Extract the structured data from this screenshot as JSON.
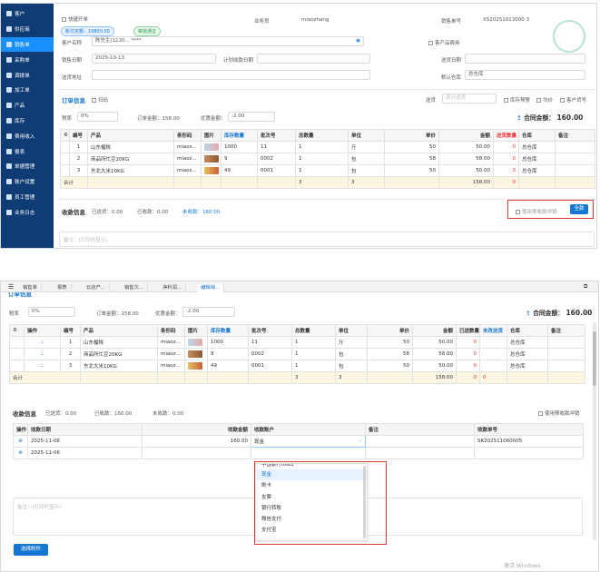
{
  "sidebar": {
    "items": [
      {
        "label": "客户",
        "active": false
      },
      {
        "label": "供应商",
        "active": false
      },
      {
        "label": "销售单",
        "active": true
      },
      {
        "label": "采购单",
        "active": false
      },
      {
        "label": "调拨单",
        "active": false
      },
      {
        "label": "加工单",
        "active": false
      },
      {
        "label": "产品",
        "active": false
      },
      {
        "label": "库存",
        "active": false
      },
      {
        "label": "费用收入",
        "active": false
      },
      {
        "label": "报表",
        "active": false
      },
      {
        "label": "单据管理",
        "active": false
      },
      {
        "label": "账户设置",
        "active": false
      },
      {
        "label": "员工管理",
        "active": false
      },
      {
        "label": "业务日志",
        "active": false
      }
    ]
  },
  "top": {
    "quick_label": "快捷开单",
    "tag_credit": "新付定额：19800.00",
    "tag_status": "审批通过",
    "salesman_label": "业务员",
    "salesman_value": "miaozhang",
    "order_no_label": "销售单号",
    "order_no_value": "XS20251013000 3",
    "customer_label": "客户名称",
    "customer_value": "陈先生(1130...  ****",
    "cust_product_fee": "客产品费用",
    "date_label": "销售日期",
    "date_value": "2025-10-13",
    "plan_date_label": "计划收款日期",
    "delivery_date_label": "送货日期",
    "address_label": "送货地址",
    "warehouse_label": "默认仓库",
    "warehouse_value": "总仓库"
  },
  "order": {
    "section_title": "订单信息",
    "scan_label": "扫码",
    "ship_label": "送货",
    "ship_placeholder": "部分送货",
    "stock_warn": "库存预警",
    "avg_price": "均价",
    "cust_code": "客户货号",
    "tax_label": "税率",
    "tax_value": "0%",
    "amount_label": "订单金额：",
    "amount_value": "158.00",
    "discount_label": "优惠金额：",
    "discount_value": "-2.00",
    "total_label": "合同金额：",
    "total_value": "160.00"
  },
  "table": {
    "headers": [
      "编号",
      "产品",
      "条形码",
      "图片",
      "库存数量",
      "批次号",
      "总数量",
      "单位",
      "单价",
      "金额",
      "送货数量",
      "仓库",
      "备注"
    ],
    "headers2_op": "操作",
    "headers2_sent": "已送数量",
    "headers2_unsent": "未改送货",
    "rows": [
      {
        "no": "1",
        "product": "山东榴桃",
        "barcode": "miaoz...",
        "stock": "1000",
        "batch": "11",
        "qty": "1",
        "unit": "斤",
        "price": "50",
        "amount": "50.00",
        "ship": "0",
        "sent": "0",
        "warehouse": "总仓库"
      },
      {
        "no": "2",
        "product": "商品所忙豆20KG",
        "barcode": "miaoz...",
        "stock": "9",
        "batch": "0002",
        "qty": "1",
        "unit": "包",
        "price": "58",
        "amount": "58.00",
        "ship": "0",
        "sent": "0",
        "warehouse": "总仓库"
      },
      {
        "no": "3",
        "product": "东北大米10KG",
        "barcode": "miaoz...",
        "stock": "49",
        "batch": "0001",
        "qty": "1",
        "unit": "包",
        "price": "50",
        "amount": "50.00",
        "ship": "0",
        "sent": "0",
        "warehouse": "总仓库"
      }
    ],
    "sum_label": "合计",
    "sum_qty": "3",
    "sum_qty2": "3",
    "sum_amount": "158.00",
    "sum_ship": "0"
  },
  "receipt1": {
    "title": "收款信息",
    "sent": "已送货：0.00",
    "received": "已收款：0.00",
    "unreceived": "未收款：160.00",
    "use_prepaid": "使用预收款冲销",
    "btn": "全款"
  },
  "remark_placeholder": "备注：(打印时显示)",
  "tabs": [
    "销售单",
    "报表",
    "云店产...",
    "销售欠...",
    "净利润...",
    "编辑销..."
  ],
  "receipt2": {
    "title": "收款信息",
    "sent": "已送货：0.00",
    "received": "已收款：160.00",
    "unreceived": "未收款：0.00",
    "use_prepaid": "使用预收款冲销",
    "headers": [
      "操作",
      "收款日期",
      "收款金额",
      "收款账户",
      "备注",
      "收款单号"
    ],
    "rows": [
      {
        "date": "2025-11-06",
        "amount": "160.00",
        "account": "现金",
        "no": "SK202511060005"
      },
      {
        "date": "2025-11-06",
        "amount": "",
        "account": "",
        "no": ""
      }
    ],
    "options": [
      "中国银行6682",
      "现金",
      "刷卡",
      "支票",
      "银行转账",
      "微信支付",
      "支付宝"
    ],
    "select_attach": "选择附件",
    "watermark": "激活 Windows"
  },
  "colors": {
    "accent": "#1677d2",
    "sidebar": "#0f3c75",
    "highlight": "#e53935"
  }
}
